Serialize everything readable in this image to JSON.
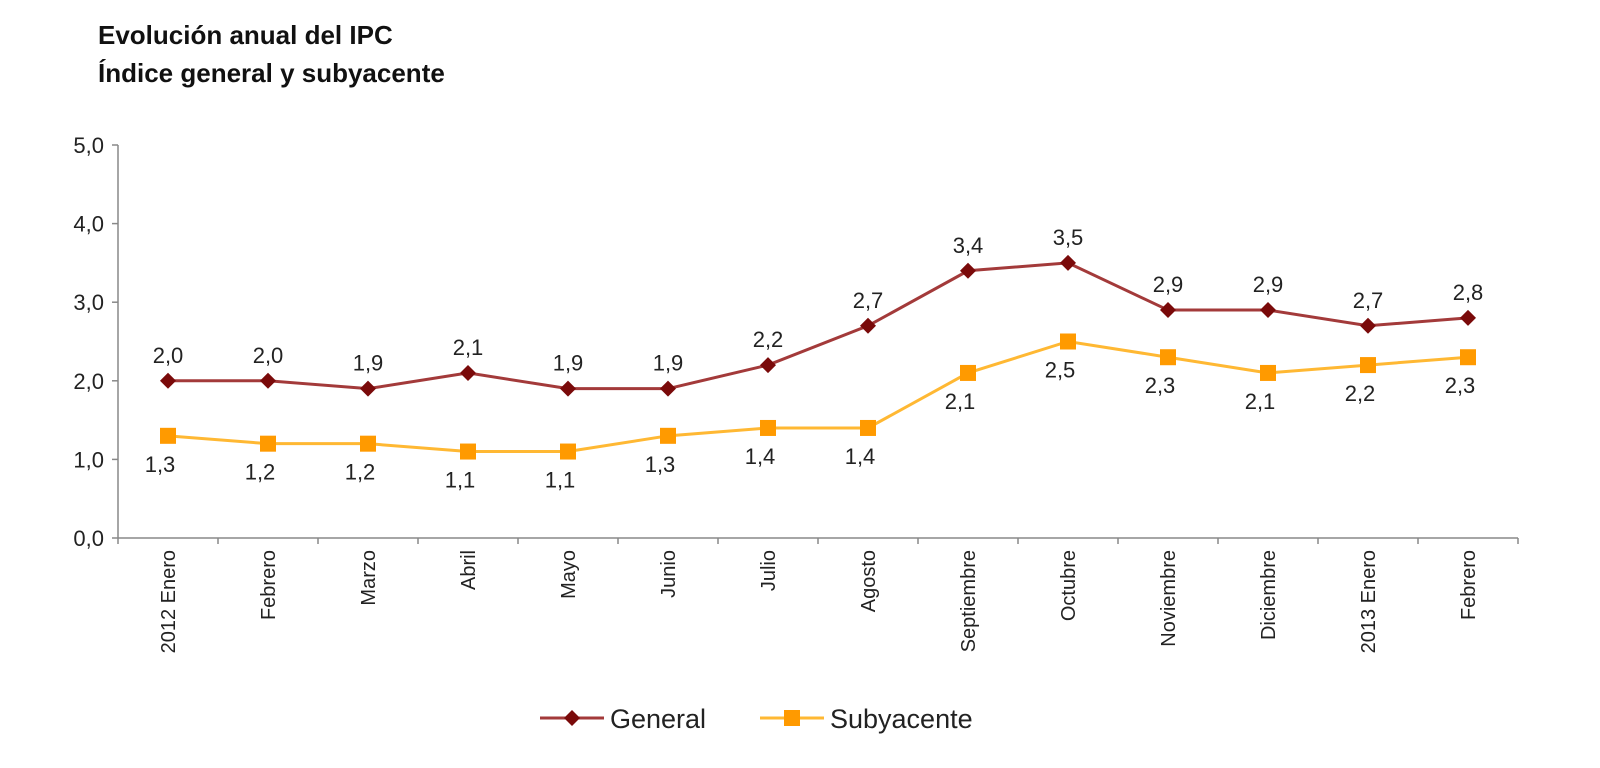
{
  "chart_data": {
    "type": "line",
    "title": "Evolución anual del IPC",
    "subtitle": "Índice general y subyacente",
    "xlabel": "",
    "ylabel": "",
    "ylim": [
      0,
      5
    ],
    "yticks": [
      0,
      1,
      2,
      3,
      4,
      5
    ],
    "ytick_labels": [
      "0,0",
      "1,0",
      "2,0",
      "3,0",
      "4,0",
      "5,0"
    ],
    "categories": [
      "2012 Enero",
      "Febrero",
      "Marzo",
      "Abril",
      "Mayo",
      "Junio",
      "Julio",
      "Agosto",
      "Septiembre",
      "Octubre",
      "Noviembre",
      "Diciembre",
      "2013 Enero",
      "Febrero"
    ],
    "series": [
      {
        "name": "General",
        "line_color": "#A33A3A",
        "marker_color": "#7A0A0A",
        "marker": "diamond",
        "label_position": "above",
        "values": [
          2.0,
          2.0,
          1.9,
          2.1,
          1.9,
          1.9,
          2.2,
          2.7,
          3.4,
          3.5,
          2.9,
          2.9,
          2.7,
          2.8
        ]
      },
      {
        "name": "Subyacente",
        "line_color": "#FFB833",
        "marker_color": "#FF9A00",
        "marker": "square",
        "label_position": "below",
        "values": [
          1.3,
          1.2,
          1.2,
          1.1,
          1.1,
          1.3,
          1.4,
          1.4,
          2.1,
          2.5,
          2.3,
          2.1,
          2.2,
          2.3
        ]
      }
    ],
    "grid": false,
    "legend": "bottom-center"
  }
}
